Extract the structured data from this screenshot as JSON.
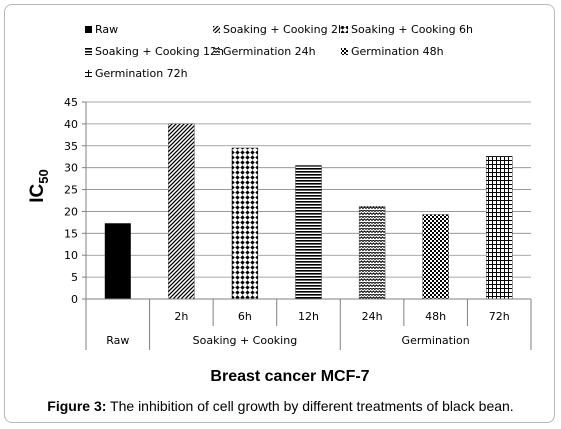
{
  "chart_data": {
    "type": "bar",
    "ylabel_main": "IC",
    "ylabel_sub": "50",
    "xlabel": "Breast cancer MCF-7",
    "ylim": [
      0,
      45
    ],
    "yticks": [
      0,
      5,
      10,
      15,
      20,
      25,
      30,
      35,
      40,
      45
    ],
    "grid": true,
    "legend_position": "top",
    "categories": [
      "Raw",
      "2h",
      "6h",
      "12h",
      "24h",
      "48h",
      "72h"
    ],
    "groups": [
      {
        "label": "Raw",
        "span": 1
      },
      {
        "label": "Soaking + Cooking",
        "span": 3
      },
      {
        "label": "Germination",
        "span": 3
      }
    ],
    "series": [
      {
        "name": "Raw",
        "category": "Raw",
        "value": 17.3,
        "pattern": "solid"
      },
      {
        "name": "Soaking + Cooking 2h",
        "category": "2h",
        "value": 40,
        "pattern": "diagonal"
      },
      {
        "name": "Soaking + Cooking 6h",
        "category": "6h",
        "value": 34.5,
        "pattern": "diamond"
      },
      {
        "name": "Soaking + Cooking 12h",
        "category": "12h",
        "value": 30.5,
        "pattern": "horizontal"
      },
      {
        "name": "Germination 24h",
        "category": "24h",
        "value": 21.2,
        "pattern": "wave"
      },
      {
        "name": "Germination 48h",
        "category": "48h",
        "value": 19.3,
        "pattern": "dots"
      },
      {
        "name": "Germination 72h",
        "category": "72h",
        "value": 32.6,
        "pattern": "grid"
      }
    ]
  },
  "caption": {
    "label": "Figure 3:",
    "text": " The inhibition of cell growth by different treatments of black bean."
  }
}
